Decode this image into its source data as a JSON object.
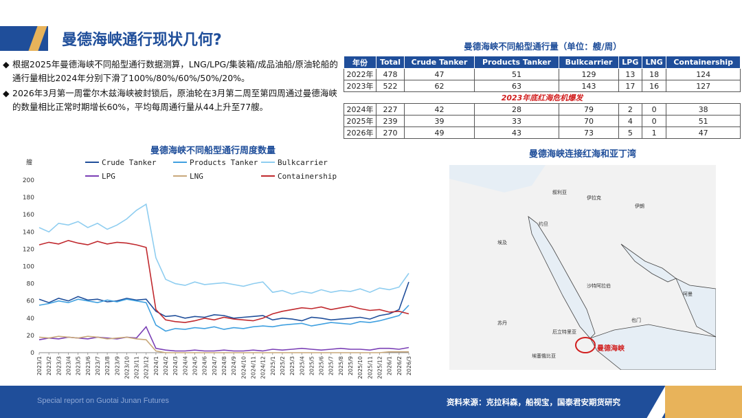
{
  "page": {
    "title": "曼德海峡通行现状几何?",
    "bullets": [
      "根据2025年曼德海峡不同船型通行数据测算，LNG/LPG/集装箱/成品油船/原油轮船的通行量相比2024年分别下滑了100%/80%/60%/50%/20%。",
      "2026年3月第一周霍尔木兹海峡被封锁后，原油轮在3月第二周至第四周通过曼德海峡的数量相比正常时期增长60%，平均每周通行量从44上升至77艘。"
    ],
    "bullet_mark": "◆",
    "footer_left": "Special report on Guotai Junan Futures",
    "footer_right": "资料来源：克拉科森，船视宝，国泰君安期货研究",
    "map_title": "曼德海峡连接红海和亚丁湾",
    "map_labels": {
      "strait": "曼德海峡",
      "saudi": "沙特阿拉伯",
      "egypt": "埃及",
      "sudan": "苏丹",
      "yemen": "也门",
      "iraq": "伊拉克",
      "iran": "伊朗",
      "syria": "叙利亚",
      "jordan": "约旦",
      "oman": "阿曼",
      "eritrea": "厄立特里亚",
      "ethiopia": "埃塞俄比亚"
    }
  },
  "table": {
    "title": "曼德海峡不同船型通行量（单位：艘/周）",
    "headers": [
      "年份",
      "Total",
      "Crude Tanker",
      "Products Tanker",
      "Bulkcarrier",
      "LPG",
      "LNG",
      "Containership"
    ],
    "rows_before": [
      [
        "2022年",
        "478",
        "47",
        "51",
        "129",
        "13",
        "18",
        "124"
      ],
      [
        "2023年",
        "522",
        "62",
        "63",
        "143",
        "17",
        "16",
        "127"
      ]
    ],
    "note": "2023年底红海危机爆发",
    "rows_after": [
      [
        "2024年",
        "227",
        "42",
        "28",
        "79",
        "2",
        "0",
        "38"
      ],
      [
        "2025年",
        "239",
        "39",
        "33",
        "70",
        "4",
        "0",
        "51"
      ],
      [
        "2026年",
        "270",
        "49",
        "43",
        "73",
        "5",
        "1",
        "47"
      ]
    ]
  },
  "chart_data": {
    "type": "line",
    "title": "曼德海峡不同船型通行周度数量",
    "ylabel": "艘",
    "ylim": [
      0,
      200
    ],
    "yticks": [
      0,
      20,
      40,
      60,
      80,
      100,
      120,
      140,
      160,
      180,
      200
    ],
    "x": [
      "2023/1",
      "2023/2",
      "2023/3",
      "2023/4",
      "2023/5",
      "2023/6",
      "2023/7",
      "2023/8",
      "2023/9",
      "2023/10",
      "2023/11",
      "2023/12",
      "2024/1",
      "2024/2",
      "2024/3",
      "2024/4",
      "2024/5",
      "2024/6",
      "2024/7",
      "2024/8",
      "2024/9",
      "2024/10",
      "2024/11",
      "2024/12",
      "2025/1",
      "2025/2",
      "2025/3",
      "2025/4",
      "2025/5",
      "2025/6",
      "2025/7",
      "2025/8",
      "2025/9",
      "2025/10",
      "2025/11",
      "2025/12",
      "2026/1",
      "2026/2",
      "2026/3"
    ],
    "legend": [
      {
        "name": "Crude Tanker",
        "color": "#1f4e9a"
      },
      {
        "name": "Products Tanker",
        "color": "#3fa0e0"
      },
      {
        "name": "Bulkcarrier",
        "color": "#8ecdf0"
      },
      {
        "name": "LPG",
        "color": "#7a3fb5"
      },
      {
        "name": "LNG",
        "color": "#c8a87a"
      },
      {
        "name": "Containership",
        "color": "#c0282d"
      }
    ],
    "series": [
      {
        "name": "Crude Tanker",
        "color": "#1f4e9a",
        "values": [
          62,
          58,
          63,
          60,
          65,
          61,
          62,
          59,
          60,
          63,
          61,
          62,
          48,
          42,
          43,
          40,
          42,
          41,
          44,
          43,
          40,
          41,
          42,
          43,
          38,
          40,
          39,
          37,
          41,
          40,
          38,
          39,
          40,
          41,
          39,
          43,
          45,
          50,
          82
        ]
      },
      {
        "name": "Products Tanker",
        "color": "#3fa0e0",
        "values": [
          55,
          57,
          60,
          58,
          62,
          60,
          58,
          61,
          59,
          62,
          60,
          58,
          32,
          25,
          28,
          27,
          29,
          28,
          30,
          27,
          29,
          28,
          30,
          31,
          30,
          32,
          33,
          34,
          31,
          33,
          35,
          34,
          33,
          36,
          35,
          37,
          40,
          43,
          55
        ]
      },
      {
        "name": "Bulkcarrier",
        "color": "#8ecdf0",
        "values": [
          145,
          140,
          150,
          148,
          152,
          145,
          150,
          143,
          148,
          155,
          165,
          172,
          110,
          85,
          80,
          78,
          82,
          79,
          80,
          81,
          79,
          77,
          80,
          82,
          70,
          72,
          68,
          71,
          69,
          73,
          70,
          72,
          71,
          74,
          70,
          75,
          73,
          76,
          92
        ]
      },
      {
        "name": "LPG",
        "color": "#7a3fb5",
        "values": [
          15,
          17,
          16,
          18,
          17,
          16,
          18,
          17,
          16,
          18,
          17,
          30,
          5,
          3,
          2,
          2,
          3,
          2,
          2,
          3,
          2,
          2,
          3,
          2,
          4,
          3,
          4,
          5,
          4,
          3,
          4,
          5,
          4,
          4,
          3,
          5,
          5,
          4,
          6
        ]
      },
      {
        "name": "LNG",
        "color": "#c8a87a",
        "values": [
          18,
          17,
          19,
          18,
          17,
          19,
          18,
          16,
          17,
          18,
          16,
          15,
          2,
          0,
          0,
          0,
          0,
          0,
          0,
          0,
          0,
          0,
          0,
          0,
          0,
          0,
          0,
          0,
          0,
          0,
          0,
          0,
          0,
          0,
          0,
          0,
          1,
          1,
          1
        ]
      },
      {
        "name": "Containership",
        "color": "#c0282d",
        "values": [
          125,
          128,
          126,
          130,
          127,
          125,
          129,
          126,
          128,
          127,
          125,
          122,
          50,
          38,
          36,
          35,
          37,
          40,
          38,
          41,
          39,
          38,
          37,
          40,
          45,
          48,
          50,
          52,
          51,
          53,
          50,
          52,
          54,
          51,
          49,
          50,
          47,
          48,
          45
        ]
      }
    ]
  }
}
